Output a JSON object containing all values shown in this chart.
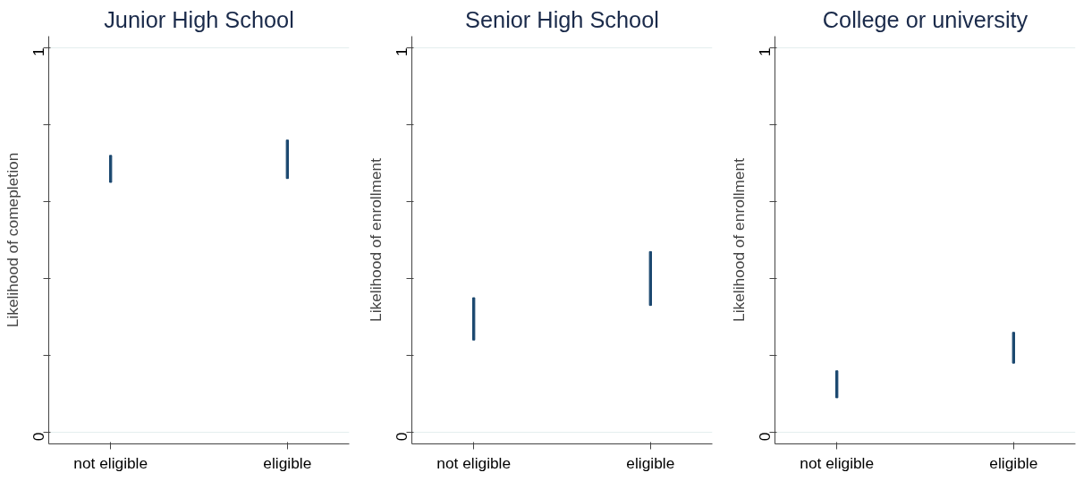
{
  "chart_data": [
    {
      "type": "bar",
      "title": "Junior High School",
      "ylabel": "Likelihood of comepletion",
      "categories": [
        "not eligible",
        "eligible"
      ],
      "base": [
        0.65,
        0.66
      ],
      "values": [
        0.07,
        0.1
      ],
      "color": "#1a476f",
      "ylim": [
        -0.03,
        1.03
      ],
      "yticks": [
        0,
        {
          "value": 0.2,
          "label": null
        },
        {
          "value": 0.4,
          "label": null
        },
        {
          "value": 0.6,
          "label": null
        },
        {
          "value": 0.8,
          "label": null
        },
        1
      ],
      "grid": "y"
    },
    {
      "type": "bar",
      "title": "Senior High School",
      "ylabel": "Likelihood of enrollment",
      "categories": [
        "not eligible",
        "eligible"
      ],
      "base": [
        0.24,
        0.33
      ],
      "values": [
        0.11,
        0.14
      ],
      "color": "#1a476f",
      "ylim": [
        -0.03,
        1.03
      ],
      "yticks": [
        0,
        {
          "value": 0.2,
          "label": null
        },
        {
          "value": 0.4,
          "label": null
        },
        {
          "value": 0.6,
          "label": null
        },
        {
          "value": 0.8,
          "label": null
        },
        1
      ],
      "grid": "y"
    },
    {
      "type": "bar",
      "title": "College or university",
      "ylabel": "Likelihood of enrollment",
      "categories": [
        "not eligible",
        "eligible"
      ],
      "base": [
        0.09,
        0.18
      ],
      "values": [
        0.07,
        0.08
      ],
      "color": "#1a476f",
      "ylim": [
        -0.03,
        1.03
      ],
      "yticks": [
        0,
        {
          "value": 0.2,
          "label": null
        },
        {
          "value": 0.4,
          "label": null
        },
        {
          "value": 0.6,
          "label": null
        },
        {
          "value": 0.8,
          "label": null
        },
        1
      ],
      "grid": "y"
    }
  ]
}
